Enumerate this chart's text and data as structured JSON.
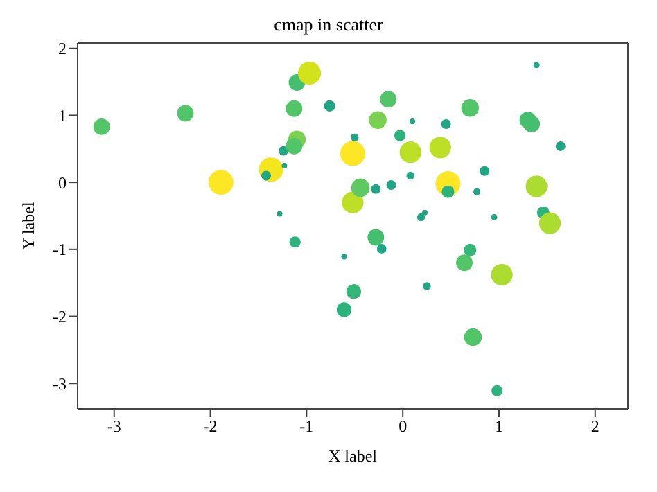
{
  "chart_data": {
    "type": "bubble",
    "title": "cmap in scatter",
    "xlabel": "X label",
    "ylabel": "Y label",
    "x": [
      -3.13,
      -2.26,
      -1.89,
      -1.37,
      -1.42,
      -1.24,
      -1.23,
      -1.28,
      -1.1,
      -1.13,
      -1.13,
      -1.1,
      -0.97,
      -0.76,
      -0.5,
      -0.52,
      -0.52,
      -0.44,
      -0.15,
      -0.26,
      0.1,
      -0.03,
      0.45,
      0.7,
      1.3,
      1.34,
      1.39,
      1.64,
      0.08,
      0.39,
      0.47,
      0.47,
      -0.28,
      -0.12,
      0.08,
      0.85,
      0.77,
      0.95,
      0.19,
      0.23,
      1.39,
      1.46,
      1.53,
      -0.28,
      -0.22,
      -0.61,
      -0.51,
      -0.61,
      0.25,
      0.7,
      0.64,
      1.03,
      0.73,
      0.98,
      -1.12
    ],
    "values": [
      0.83,
      1.03,
      0.0,
      0.19,
      0.1,
      0.47,
      0.25,
      -0.47,
      0.64,
      0.54,
      1.1,
      1.49,
      1.63,
      1.14,
      0.67,
      0.43,
      -0.3,
      -0.08,
      1.24,
      0.93,
      0.91,
      0.7,
      0.87,
      1.11,
      0.93,
      0.87,
      1.75,
      0.54,
      0.45,
      0.52,
      -0.02,
      -0.14,
      -0.1,
      -0.04,
      0.1,
      0.17,
      -0.14,
      -0.52,
      -0.52,
      -0.45,
      -0.06,
      -0.45,
      -0.61,
      -0.82,
      -0.99,
      -1.11,
      -1.63,
      -1.9,
      -1.55,
      -1.01,
      -1.2,
      -1.38,
      -2.31,
      -3.11,
      -0.89
    ],
    "sizes": [
      0.44,
      0.44,
      1,
      0.95,
      0.15,
      0.15,
      0.05,
      0.05,
      0.5,
      0.44,
      0.44,
      0.44,
      0.85,
      0.2,
      0.1,
      1,
      0.75,
      0.55,
      0.44,
      0.5,
      0.05,
      0.2,
      0.15,
      0.5,
      0.44,
      0.44,
      0.06,
      0.15,
      0.75,
      0.75,
      1,
      0.25,
      0.15,
      0.15,
      0.1,
      0.15,
      0.08,
      0.06,
      0.1,
      0.05,
      0.75,
      0.25,
      0.75,
      0.44,
      0.15,
      0.05,
      0.35,
      0.35,
      0.1,
      0.25,
      0.44,
      0.75,
      0.5,
      0.2,
      0.2
    ],
    "colors": [
      "#52c569",
      "#52c569",
      "#fde725",
      "#f4e61e",
      "#21a685",
      "#21a685",
      "#21a685",
      "#21a685",
      "#7ad151",
      "#52c569",
      "#52c569",
      "#44bf70",
      "#d2e21b",
      "#21a685",
      "#21a685",
      "#fde725",
      "#bddf26",
      "#5ec962",
      "#52c569",
      "#7ad151",
      "#21a685",
      "#2db27d",
      "#21a685",
      "#52c569",
      "#44bf70",
      "#44bf70",
      "#21a685",
      "#21a685",
      "#bddf26",
      "#bddf26",
      "#fde725",
      "#2db27d",
      "#21a685",
      "#21a685",
      "#21a685",
      "#21a685",
      "#21a685",
      "#21a685",
      "#21a685",
      "#21a685",
      "#addc30",
      "#2db27d",
      "#addc30",
      "#44bf70",
      "#21a685",
      "#21a685",
      "#35b779",
      "#2db27d",
      "#21a685",
      "#35b779",
      "#52c569",
      "#addc30",
      "#52c569",
      "#2db27d",
      "#2db27d"
    ],
    "xlim": [
      -3.38,
      2.34
    ],
    "ylim": [
      -3.38,
      2.08
    ],
    "xticks": [
      -3,
      -2,
      -1,
      0,
      1,
      2
    ],
    "yticks": [
      -3,
      -2,
      -1,
      0,
      1,
      2
    ],
    "marker": "circle",
    "grid": false,
    "legend": false
  }
}
